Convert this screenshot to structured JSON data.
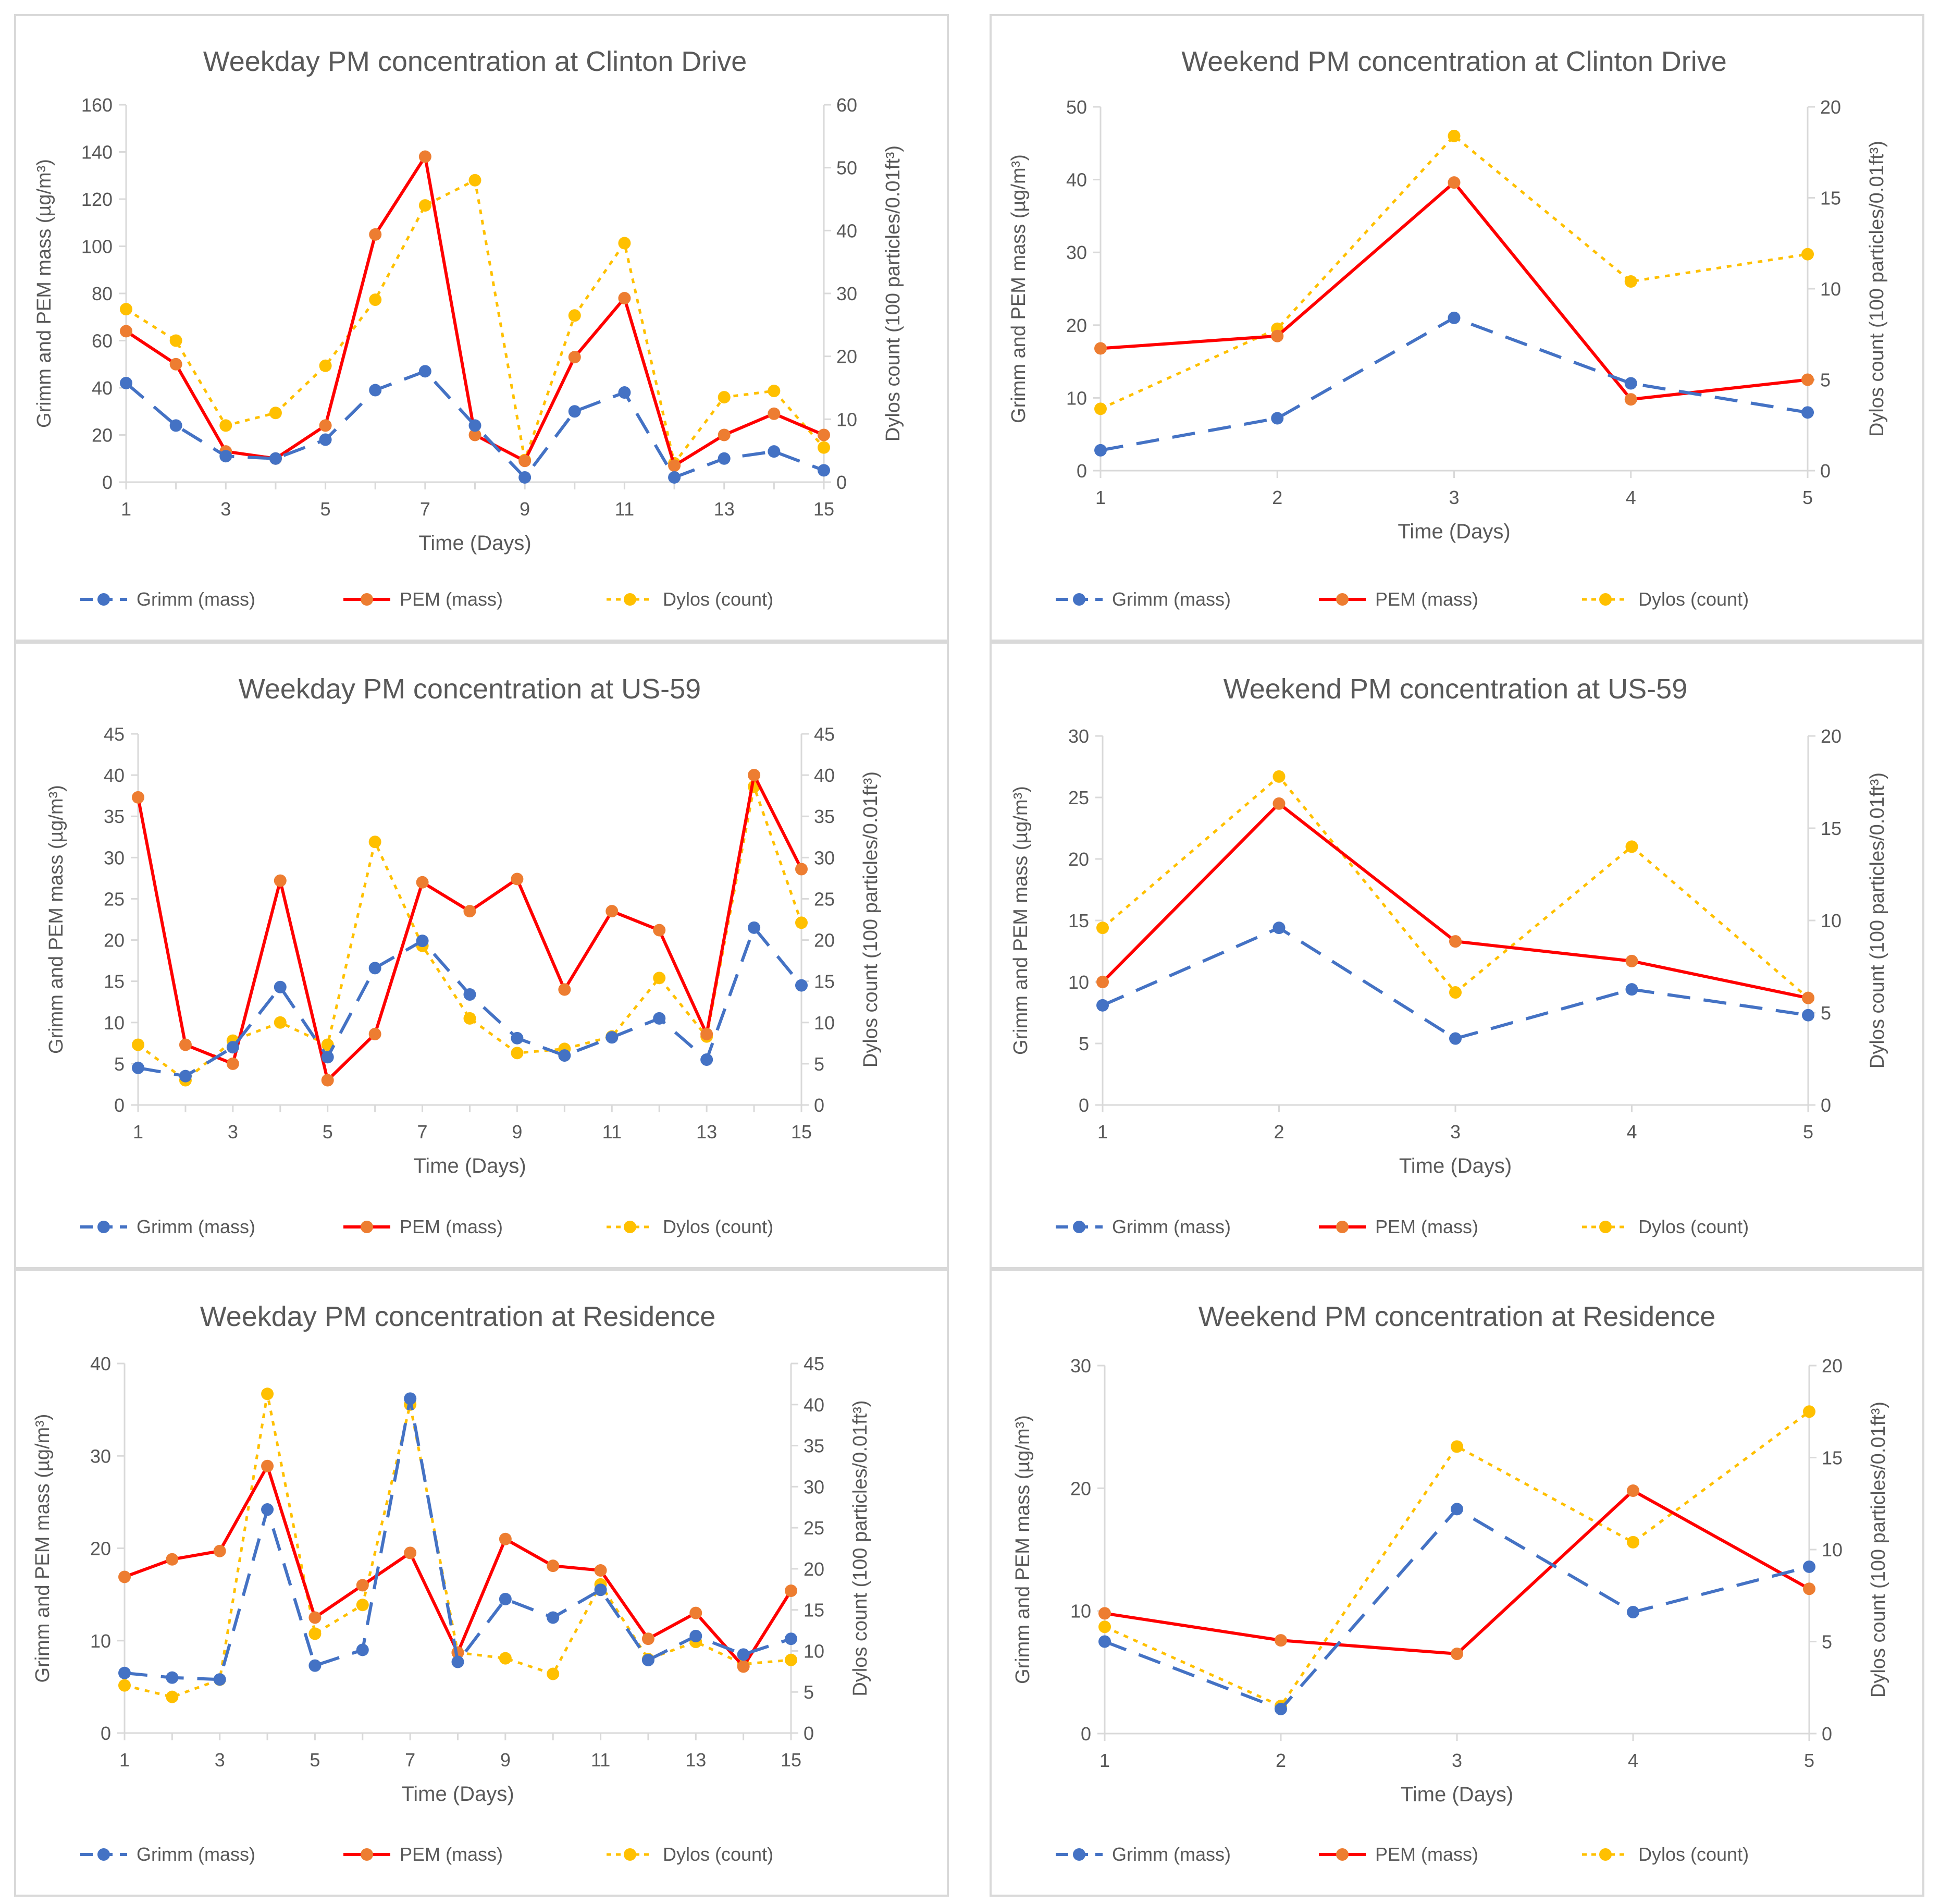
{
  "colors": {
    "grimm": "#4472C4",
    "pem_line": "#FF0000",
    "pem_marker": "#ED7D31",
    "dylos": "#FFC000",
    "axis": "#D9D9D9",
    "text": "#595959",
    "panel_border": "#D9D9D9"
  },
  "legend": {
    "grimm": "Grimm (mass)",
    "pem": "PEM (mass)",
    "dylos": "Dylos (count)"
  },
  "chart_data": [
    {
      "id": "weekday-clinton",
      "type": "line",
      "title": "Weekday PM concentration at Clinton Drive",
      "xlabel": "Time (Days)",
      "ylabel_left": "Grimm and PEM mass (µg/m³)",
      "ylabel_right": "Dylos count (100 particles/0.01ft³)",
      "xlim": [
        1,
        15
      ],
      "xticks": [
        "1",
        "3",
        "5",
        "7",
        "9",
        "11",
        "13",
        "15"
      ],
      "ylim_left": [
        0,
        160
      ],
      "yticks_left": [
        "0",
        "20",
        "40",
        "60",
        "80",
        "100",
        "120",
        "140",
        "160"
      ],
      "ylim_right": [
        0,
        60
      ],
      "yticks_right": [
        "0",
        "10",
        "20",
        "30",
        "40",
        "50",
        "60"
      ],
      "x": [
        1,
        2,
        3,
        4,
        5,
        6,
        7,
        8,
        9,
        10,
        11,
        12,
        13,
        14,
        15
      ],
      "series": [
        {
          "key": "grimm",
          "name": "Grimm (mass)",
          "axis": "left",
          "values": [
            42,
            24,
            11,
            10,
            18,
            39,
            47,
            24,
            2,
            30,
            38,
            2,
            10,
            13,
            5
          ]
        },
        {
          "key": "pem",
          "name": "PEM (mass)",
          "axis": "left",
          "values": [
            64,
            50,
            13,
            10,
            24,
            105,
            138,
            20,
            9,
            53,
            78,
            7,
            20,
            29,
            20
          ]
        },
        {
          "key": "dylos",
          "name": "Dylos (count)",
          "axis": "right",
          "values": [
            27.5,
            22.5,
            9,
            11,
            18.5,
            29,
            44,
            48,
            3.5,
            26.5,
            38,
            3,
            13.5,
            14.5,
            5.5
          ]
        }
      ]
    },
    {
      "id": "weekend-clinton",
      "type": "line",
      "title": "Weekend PM concentration at Clinton Drive",
      "xlabel": "Time (Days)",
      "ylabel_left": "Grimm and PEM mass (µg/m³)",
      "ylabel_right": "Dylos count (100 particles/0.01ft³)",
      "xlim": [
        1,
        5
      ],
      "xticks": [
        "1",
        "2",
        "3",
        "4",
        "5"
      ],
      "ylim_left": [
        0,
        50
      ],
      "yticks_left": [
        "0",
        "10",
        "20",
        "30",
        "40",
        "50"
      ],
      "ylim_right": [
        0,
        20
      ],
      "yticks_right": [
        "0",
        "5",
        "10",
        "15",
        "20"
      ],
      "x": [
        1,
        2,
        3,
        4,
        5
      ],
      "series": [
        {
          "key": "grimm",
          "name": "Grimm (mass)",
          "axis": "left",
          "values": [
            2.8,
            7.2,
            21,
            12,
            8
          ]
        },
        {
          "key": "pem",
          "name": "PEM (mass)",
          "axis": "left",
          "values": [
            16.8,
            18.5,
            39.6,
            9.8,
            12.5
          ]
        },
        {
          "key": "dylos",
          "name": "Dylos (count)",
          "axis": "right",
          "values": [
            3.4,
            7.8,
            18.4,
            10.4,
            11.9
          ]
        }
      ]
    },
    {
      "id": "weekday-us59",
      "type": "line",
      "title": "Weekday PM concentration at US-59",
      "xlabel": "Time (Days)",
      "ylabel_left": "Grimm and PEM mass (µg/m³)",
      "ylabel_right": "Dylos count (100 particles/0.01ft³)",
      "xlim": [
        1,
        15
      ],
      "xticks": [
        "1",
        "3",
        "5",
        "7",
        "9",
        "11",
        "13",
        "15"
      ],
      "ylim_left": [
        0,
        45
      ],
      "yticks_left": [
        "0",
        "5",
        "10",
        "15",
        "20",
        "25",
        "30",
        "35",
        "40",
        "45"
      ],
      "ylim_right": [
        0,
        45
      ],
      "yticks_right": [
        "0",
        "5",
        "10",
        "15",
        "20",
        "25",
        "30",
        "35",
        "40",
        "45"
      ],
      "x": [
        1,
        2,
        3,
        4,
        5,
        6,
        7,
        8,
        9,
        10,
        11,
        12,
        13,
        14,
        15
      ],
      "series": [
        {
          "key": "grimm",
          "name": "Grimm (mass)",
          "axis": "left",
          "values": [
            4.5,
            3.5,
            7,
            14.3,
            5.8,
            16.6,
            19.9,
            13.4,
            8.1,
            6,
            8.2,
            10.5,
            5.5,
            21.5,
            14.5
          ]
        },
        {
          "key": "pem",
          "name": "PEM (mass)",
          "axis": "left",
          "values": [
            37.3,
            7.3,
            5,
            27.2,
            3,
            8.6,
            27,
            23.5,
            27.4,
            14,
            23.5,
            21.2,
            8.6,
            40,
            28.6
          ]
        },
        {
          "key": "dylos",
          "name": "Dylos (count)",
          "axis": "right",
          "values": [
            7.3,
            3,
            7.8,
            10,
            7.3,
            31.9,
            19.3,
            10.5,
            6.3,
            6.8,
            8.3,
            15.4,
            8.3,
            38.6,
            22.1
          ]
        }
      ]
    },
    {
      "id": "weekend-us59",
      "type": "line",
      "title": "Weekend PM concentration at US-59",
      "xlabel": "Time (Days)",
      "ylabel_left": "Grimm and PEM mass (µg/m³)",
      "ylabel_right": "Dylos count (100 particles/0.01ft³)",
      "xlim": [
        1,
        5
      ],
      "xticks": [
        "1",
        "2",
        "3",
        "4",
        "5"
      ],
      "ylim_left": [
        0,
        30
      ],
      "yticks_left": [
        "0",
        "5",
        "10",
        "15",
        "20",
        "25",
        "30"
      ],
      "ylim_right": [
        0,
        20
      ],
      "yticks_right": [
        "0",
        "5",
        "10",
        "15",
        "20"
      ],
      "x": [
        1,
        2,
        3,
        4,
        5
      ],
      "series": [
        {
          "key": "grimm",
          "name": "Grimm (mass)",
          "axis": "left",
          "values": [
            8.1,
            14.4,
            5.4,
            9.4,
            7.3
          ]
        },
        {
          "key": "pem",
          "name": "PEM (mass)",
          "axis": "left",
          "values": [
            10,
            24.5,
            13.3,
            11.7,
            8.7
          ]
        },
        {
          "key": "dylos",
          "name": "Dylos (count)",
          "axis": "right",
          "values": [
            9.6,
            17.8,
            6.1,
            14,
            5.8
          ]
        }
      ]
    },
    {
      "id": "weekday-residence",
      "type": "line",
      "title": "Weekday PM concentration at Residence",
      "xlabel": "Time (Days)",
      "ylabel_left": "Grimm and PEM mass (µg/m³)",
      "ylabel_right": "Dylos count (100 particles/0.01ft³)",
      "xlim": [
        1,
        15
      ],
      "xticks": [
        "1",
        "3",
        "5",
        "7",
        "9",
        "11",
        "13",
        "15"
      ],
      "ylim_left": [
        0,
        40
      ],
      "yticks_left": [
        "0",
        "10",
        "20",
        "30",
        "40"
      ],
      "ylim_right": [
        0,
        45
      ],
      "yticks_right": [
        "0",
        "5",
        "10",
        "15",
        "20",
        "25",
        "30",
        "35",
        "40",
        "45"
      ],
      "x": [
        1,
        2,
        3,
        4,
        5,
        6,
        7,
        8,
        9,
        10,
        11,
        12,
        13,
        14,
        15
      ],
      "series": [
        {
          "key": "grimm",
          "name": "Grimm (mass)",
          "axis": "left",
          "values": [
            6.5,
            6,
            5.8,
            24.2,
            7.3,
            9,
            36.2,
            7.7,
            14.5,
            12.5,
            15.5,
            7.9,
            10.5,
            8.5,
            10.2
          ]
        },
        {
          "key": "pem",
          "name": "PEM (mass)",
          "axis": "left",
          "values": [
            16.9,
            18.8,
            19.7,
            28.9,
            12.5,
            16,
            19.5,
            8.7,
            21,
            18.1,
            17.6,
            10.2,
            13,
            7.2,
            15.4
          ]
        },
        {
          "key": "dylos",
          "name": "Dylos (count)",
          "axis": "right",
          "values": [
            5.8,
            4.4,
            6.5,
            41.3,
            12.1,
            15.6,
            40,
            9.8,
            9.1,
            7.2,
            18.1,
            9,
            11.1,
            8.4,
            8.9
          ]
        }
      ]
    },
    {
      "id": "weekend-residence",
      "type": "line",
      "title": "Weekend PM concentration at Residence",
      "xlabel": "Time (Days)",
      "ylabel_left": "Grimm and PEM mass (µg/m³)",
      "ylabel_right": "Dylos count (100 particles/0.01ft³)",
      "xlim": [
        1,
        5
      ],
      "xticks": [
        "1",
        "2",
        "3",
        "4",
        "5"
      ],
      "ylim_left": [
        0,
        30
      ],
      "yticks_left": [
        "0",
        "10",
        "20",
        "30"
      ],
      "ylim_right": [
        0,
        20
      ],
      "yticks_right": [
        "0",
        "5",
        "10",
        "15",
        "20"
      ],
      "x": [
        1,
        2,
        3,
        4,
        5
      ],
      "series": [
        {
          "key": "grimm",
          "name": "Grimm (mass)",
          "axis": "left",
          "values": [
            7.5,
            2,
            18.3,
            9.9,
            13.6
          ]
        },
        {
          "key": "pem",
          "name": "PEM (mass)",
          "axis": "left",
          "values": [
            9.8,
            7.6,
            6.5,
            19.8,
            11.8
          ]
        },
        {
          "key": "dylos",
          "name": "Dylos (count)",
          "axis": "right",
          "values": [
            5.8,
            1.5,
            15.6,
            10.4,
            17.5
          ]
        }
      ]
    }
  ]
}
